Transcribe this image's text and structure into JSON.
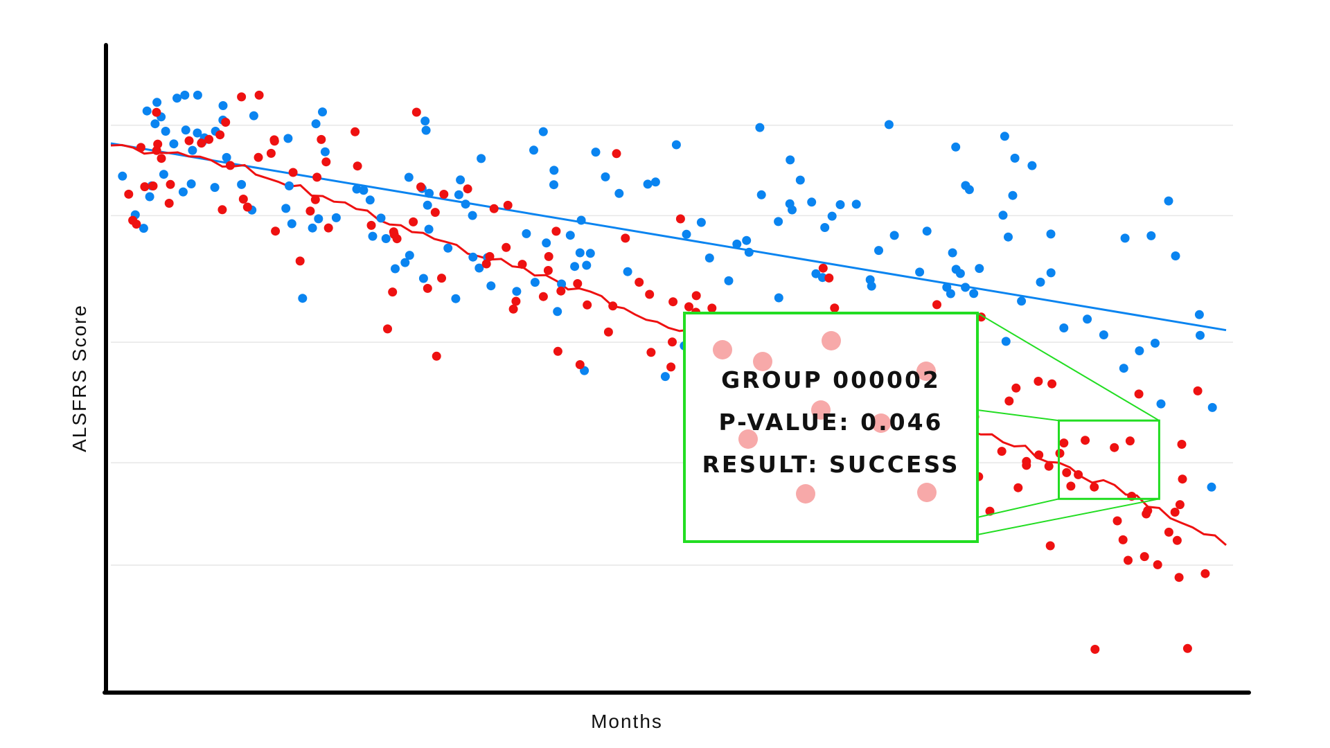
{
  "chart_data": {
    "type": "scatter",
    "title": "",
    "xlabel": "Months",
    "ylabel": "ALSFRS Score",
    "xlim": [
      0,
      100
    ],
    "ylim": [
      0,
      100
    ],
    "grid": true,
    "tick_labels_visible": false,
    "legend": "none",
    "colors": {
      "blue": "#0a84f0",
      "red": "#ee1111",
      "highlight": "#22dd22",
      "faded_point": "#f7a9a9"
    },
    "series": [
      {
        "color": "blue",
        "trend": "linear",
        "trend_start": 90,
        "trend_end": 59,
        "spread": 7,
        "count": 170,
        "seed": 11
      },
      {
        "color": "red",
        "trend": "curved",
        "trend_points": [
          [
            0,
            90
          ],
          [
            12,
            86
          ],
          [
            25,
            77
          ],
          [
            40,
            67
          ],
          [
            50,
            60
          ],
          [
            70,
            48
          ],
          [
            85,
            37
          ],
          [
            93,
            30
          ],
          [
            100,
            24
          ]
        ],
        "spread": 6,
        "count": 170,
        "seed": 29
      }
    ],
    "annotation": {
      "lines": [
        "GROUP 000002",
        "P-VALUE: 0.046",
        "RESULT: SUCCESS"
      ],
      "zoom_region": {
        "x": [
          85,
          94
        ],
        "y": [
          31,
          44
        ]
      }
    }
  }
}
